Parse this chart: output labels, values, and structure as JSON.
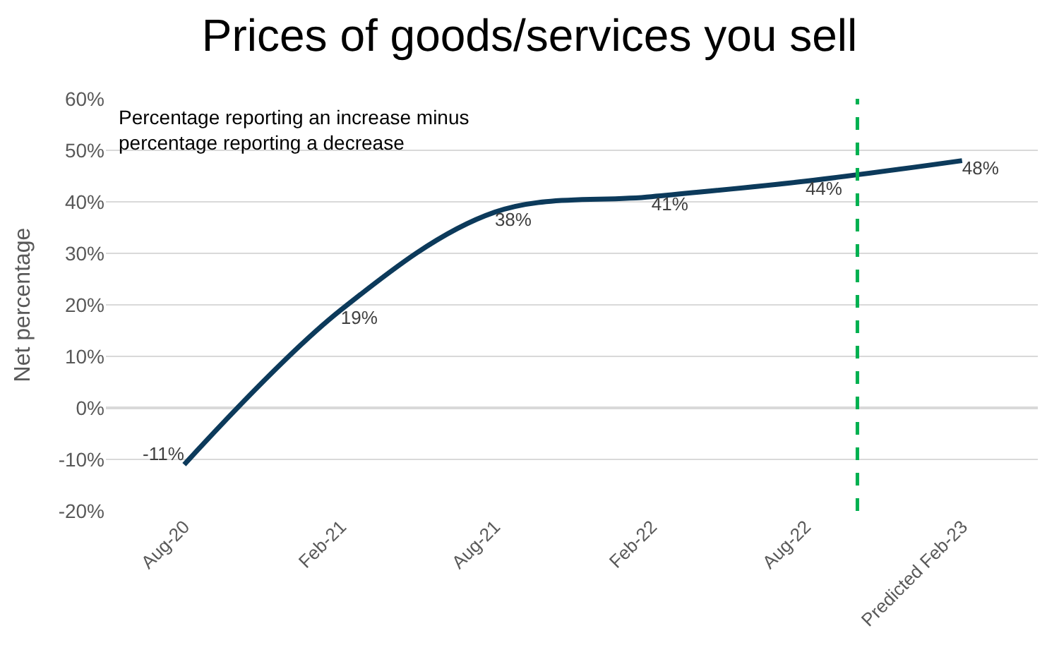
{
  "chart_data": {
    "type": "line",
    "title": "Prices of goods/services you sell",
    "ylabel": "Net percentage",
    "annotations": [
      "Percentage reporting an increase minus percentage reporting a decrease"
    ],
    "x": [
      "2020-08",
      "2021-02",
      "2021-08",
      "2022-02",
      "2022-08",
      "2023-02"
    ],
    "series": [
      {
        "color": "#0c3a5b",
        "values": [
          -11,
          19,
          38,
          41,
          44,
          48
        ],
        "value_labels": [
          "-11%",
          "19%",
          "38%",
          "41%",
          "44%",
          "48%"
        ]
      }
    ],
    "xlim": [
      "2020-05",
      "2023-05"
    ],
    "xticks": [
      {
        "value": "2020-08",
        "label": "Aug-20"
      },
      {
        "value": "2021-02",
        "label": "Feb-21"
      },
      {
        "value": "2021-08",
        "label": "Aug-21"
      },
      {
        "value": "2022-02",
        "label": "Feb-22"
      },
      {
        "value": "2022-08",
        "label": "Aug-22"
      },
      {
        "value": "2023-02",
        "label": "Predicted Feb-23"
      }
    ],
    "ylim": [
      -20,
      60
    ],
    "yticks": [
      {
        "value": -20,
        "label": "-20%"
      },
      {
        "value": -10,
        "label": "-10%"
      },
      {
        "value": 0,
        "label": "0%"
      },
      {
        "value": 10,
        "label": "10%"
      },
      {
        "value": 20,
        "label": "20%"
      },
      {
        "value": 30,
        "label": "30%"
      },
      {
        "value": 40,
        "label": "40%"
      },
      {
        "value": 50,
        "label": "50%"
      },
      {
        "value": 60,
        "label": "60%"
      }
    ],
    "ref_lines": [
      {
        "axis": "x",
        "value": "2022-10",
        "color": "#00b050",
        "line_style": "dashed"
      }
    ],
    "grid": "y",
    "marker": "none",
    "line_style": "solid"
  }
}
